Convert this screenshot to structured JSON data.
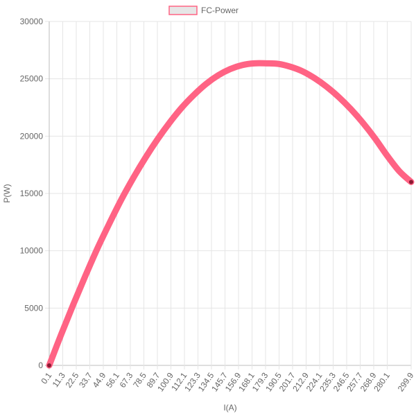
{
  "chart_data": {
    "type": "line",
    "legend": {
      "position": "top",
      "label": "FC-Power"
    },
    "xlabel": "I(A)",
    "ylabel": "P(W)",
    "ylim": [
      0,
      30000
    ],
    "y_ticks": [
      0,
      5000,
      10000,
      15000,
      20000,
      25000,
      30000
    ],
    "x_range": [
      0.1,
      299.9
    ],
    "x_tick_labels": [
      "0.1",
      "11.3",
      "22.5",
      "33.7",
      "44.9",
      "56.1",
      "67.3",
      "78.5",
      "89.7",
      "100.9",
      "112.1",
      "123.3",
      "134.5",
      "145.7",
      "156.9",
      "168.1",
      "179.3",
      "190.5",
      "201.7",
      "212.9",
      "224.1",
      "235.3",
      "246.5",
      "257.7",
      "268.9",
      "280.1",
      "299.9"
    ],
    "grid": true,
    "series": [
      {
        "name": "FC-Power",
        "color": "#ff6384",
        "x": [
          0.1,
          10,
          20,
          30,
          40,
          50,
          60,
          70,
          80,
          90,
          100,
          110,
          120,
          130,
          140,
          150,
          160,
          170,
          180,
          190,
          200,
          210,
          220,
          230,
          240,
          250,
          260,
          270,
          280,
          290,
          299.9
        ],
        "y": [
          0,
          2700,
          5300,
          7800,
          10200,
          12400,
          14500,
          16400,
          18150,
          19750,
          21200,
          22500,
          23600,
          24550,
          25300,
          25850,
          26200,
          26350,
          26350,
          26300,
          26050,
          25650,
          25050,
          24300,
          23400,
          22350,
          21150,
          19800,
          18300,
          16950,
          16000
        ]
      }
    ]
  }
}
